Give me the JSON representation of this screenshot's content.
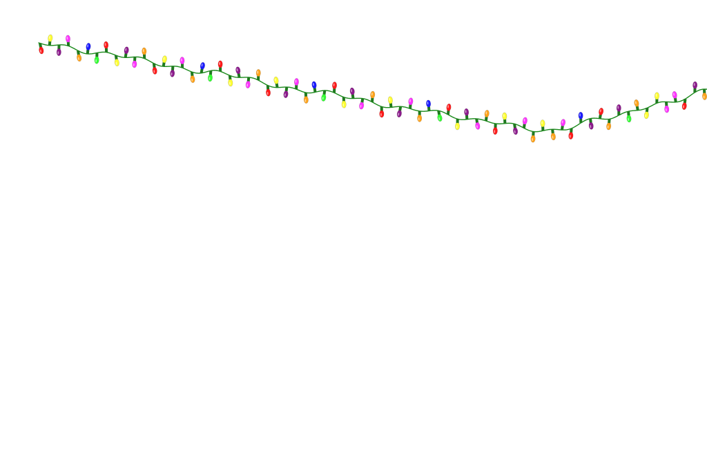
{
  "scene": {
    "background": "#ffffff",
    "wire_color": "#1a8a1a",
    "socket_color": "#1f7a1f"
  },
  "string_lights": {
    "bulb_palette": {
      "red": "#ff1a1a",
      "yellow": "#ffff33",
      "magenta": "#ff33ff",
      "blue": "#1a1aff",
      "purple": "#8c1a8c",
      "orange": "#ffa31a",
      "green": "#33ff33"
    },
    "bulb_sequence_top": [
      "yellow",
      "magenta",
      "blue",
      "red",
      "purple",
      "orange",
      "yellow",
      "magenta",
      "blue",
      "red",
      "purple",
      "orange",
      "yellow",
      "magenta",
      "blue",
      "red",
      "purple",
      "orange",
      "yellow",
      "magenta",
      "blue",
      "red",
      "purple",
      "orange",
      "yellow",
      "magenta",
      "yellow",
      "magenta",
      "blue",
      "red",
      "purple",
      "orange",
      "yellow",
      "magenta"
    ],
    "bulb_sequence_bottom": [
      "red",
      "purple",
      "orange",
      "green",
      "yellow",
      "magenta",
      "red",
      "purple",
      "orange",
      "green",
      "yellow",
      "magenta",
      "red",
      "purple",
      "orange",
      "green",
      "yellow",
      "magenta",
      "red",
      "purple",
      "orange",
      "green",
      "yellow",
      "magenta",
      "red",
      "purple",
      "orange",
      "orange",
      "red",
      "purple",
      "orange",
      "green",
      "yellow",
      "magenta",
      "red",
      "purple",
      "orange"
    ]
  }
}
